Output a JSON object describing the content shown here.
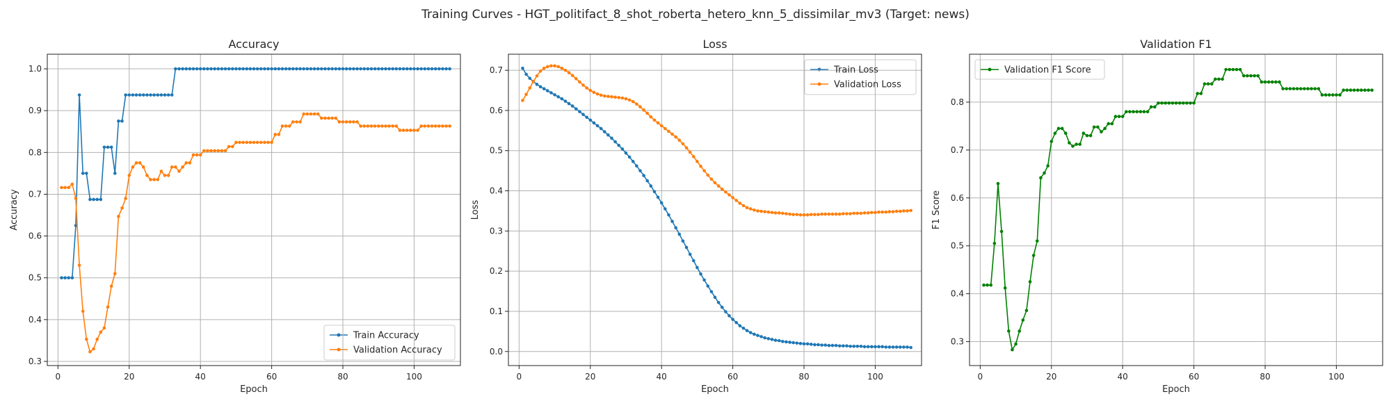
{
  "figure": {
    "suptitle": "Training Curves - HGT_politifact_8_shot_roberta_hetero_knn_5_dissimilar_mv3 (Target: news)"
  },
  "chart_data": [
    {
      "type": "line",
      "title": "Accuracy",
      "xlabel": "Epoch",
      "ylabel": "Accuracy",
      "xlim": [
        -3,
        113
      ],
      "ylim": [
        0.29,
        1.035
      ],
      "xticks": [
        0,
        20,
        40,
        60,
        80,
        100
      ],
      "yticks": [
        0.3,
        0.4,
        0.5,
        0.6,
        0.7,
        0.8,
        0.9,
        1.0
      ],
      "ytick_labels": [
        "0.3",
        "0.4",
        "0.5",
        "0.6",
        "0.7",
        "0.8",
        "0.9",
        "1.0"
      ],
      "grid": true,
      "legend": "lower-right",
      "series": [
        {
          "name": "Train Accuracy",
          "color": "#1f77b4",
          "x_start": 1,
          "values": [
            0.5,
            0.5,
            0.5,
            0.5,
            0.625,
            0.9375,
            0.75,
            0.75,
            0.6875,
            0.6875,
            0.6875,
            0.6875,
            0.8125,
            0.8125,
            0.8125,
            0.75,
            0.875,
            0.875,
            0.9375,
            0.9375,
            0.9375,
            0.9375,
            0.9375,
            0.9375,
            0.9375,
            0.9375,
            0.9375,
            0.9375,
            0.9375,
            0.9375,
            0.9375,
            0.9375,
            1,
            1,
            1,
            1,
            1,
            1,
            1,
            1,
            1,
            1,
            1,
            1,
            1,
            1,
            1,
            1,
            1,
            1,
            1,
            1,
            1,
            1,
            1,
            1,
            1,
            1,
            1,
            1,
            1,
            1,
            1,
            1,
            1,
            1,
            1,
            1,
            1,
            1,
            1,
            1,
            1,
            1,
            1,
            1,
            1,
            1,
            1,
            1,
            1,
            1,
            1,
            1,
            1,
            1,
            1,
            1,
            1,
            1,
            1,
            1,
            1,
            1,
            1,
            1,
            1,
            1,
            1,
            1,
            1,
            1,
            1,
            1,
            1,
            1,
            1,
            1,
            1,
            1
          ]
        },
        {
          "name": "Validation Accuracy",
          "color": "#ff7f0e",
          "x_start": 1,
          "values": [
            0.716,
            0.716,
            0.716,
            0.724,
            0.69,
            0.53,
            0.42,
            0.353,
            0.323,
            0.33,
            0.353,
            0.37,
            0.38,
            0.43,
            0.48,
            0.51,
            0.647,
            0.667,
            0.69,
            0.745,
            0.765,
            0.775,
            0.775,
            0.765,
            0.745,
            0.735,
            0.735,
            0.735,
            0.755,
            0.745,
            0.745,
            0.765,
            0.765,
            0.755,
            0.765,
            0.775,
            0.775,
            0.794,
            0.794,
            0.794,
            0.804,
            0.804,
            0.804,
            0.804,
            0.804,
            0.804,
            0.804,
            0.814,
            0.814,
            0.824,
            0.824,
            0.824,
            0.824,
            0.824,
            0.824,
            0.824,
            0.824,
            0.824,
            0.824,
            0.824,
            0.843,
            0.843,
            0.863,
            0.863,
            0.863,
            0.873,
            0.873,
            0.873,
            0.892,
            0.892,
            0.892,
            0.892,
            0.892,
            0.882,
            0.882,
            0.882,
            0.882,
            0.882,
            0.873,
            0.873,
            0.873,
            0.873,
            0.873,
            0.873,
            0.863,
            0.863,
            0.863,
            0.863,
            0.863,
            0.863,
            0.863,
            0.863,
            0.863,
            0.863,
            0.863,
            0.853,
            0.853,
            0.853,
            0.853,
            0.853,
            0.853,
            0.863,
            0.863,
            0.863,
            0.863,
            0.863,
            0.863,
            0.863,
            0.863,
            0.863
          ]
        }
      ]
    },
    {
      "type": "line",
      "title": "Loss",
      "xlabel": "Epoch",
      "ylabel": "Loss",
      "xlim": [
        -3,
        113
      ],
      "ylim": [
        -0.035,
        0.74
      ],
      "xticks": [
        0,
        20,
        40,
        60,
        80,
        100
      ],
      "yticks": [
        0.0,
        0.1,
        0.2,
        0.3,
        0.4,
        0.5,
        0.6,
        0.7
      ],
      "ytick_labels": [
        "0.0",
        "0.1",
        "0.2",
        "0.3",
        "0.4",
        "0.5",
        "0.6",
        "0.7"
      ],
      "grid": true,
      "legend": "upper-right",
      "series": [
        {
          "name": "Train Loss",
          "color": "#1f77b4",
          "x_start": 1,
          "values": [
            0.705,
            0.69,
            0.68,
            0.672,
            0.665,
            0.659,
            0.654,
            0.649,
            0.644,
            0.639,
            0.634,
            0.629,
            0.623,
            0.617,
            0.611,
            0.604,
            0.597,
            0.59,
            0.583,
            0.576,
            0.569,
            0.562,
            0.555,
            0.547,
            0.539,
            0.531,
            0.522,
            0.513,
            0.504,
            0.494,
            0.484,
            0.473,
            0.462,
            0.45,
            0.438,
            0.425,
            0.412,
            0.398,
            0.384,
            0.37,
            0.355,
            0.34,
            0.324,
            0.308,
            0.292,
            0.275,
            0.259,
            0.242,
            0.226,
            0.209,
            0.193,
            0.178,
            0.163,
            0.149,
            0.135,
            0.122,
            0.11,
            0.099,
            0.089,
            0.08,
            0.072,
            0.064,
            0.058,
            0.052,
            0.047,
            0.043,
            0.04,
            0.037,
            0.034,
            0.032,
            0.03,
            0.028,
            0.027,
            0.025,
            0.024,
            0.023,
            0.022,
            0.021,
            0.02,
            0.019,
            0.019,
            0.018,
            0.017,
            0.017,
            0.016,
            0.016,
            0.015,
            0.015,
            0.015,
            0.014,
            0.014,
            0.014,
            0.013,
            0.013,
            0.013,
            0.013,
            0.012,
            0.012,
            0.012,
            0.012,
            0.012,
            0.012,
            0.011,
            0.011,
            0.011,
            0.011,
            0.011,
            0.011,
            0.011,
            0.01
          ]
        },
        {
          "name": "Validation Loss",
          "color": "#ff7f0e",
          "x_start": 1,
          "values": [
            0.625,
            0.64,
            0.656,
            0.672,
            0.686,
            0.698,
            0.705,
            0.709,
            0.711,
            0.711,
            0.709,
            0.705,
            0.7,
            0.694,
            0.687,
            0.679,
            0.671,
            0.663,
            0.656,
            0.65,
            0.645,
            0.641,
            0.638,
            0.636,
            0.635,
            0.634,
            0.633,
            0.632,
            0.631,
            0.629,
            0.626,
            0.622,
            0.616,
            0.609,
            0.601,
            0.593,
            0.584,
            0.576,
            0.569,
            0.562,
            0.555,
            0.548,
            0.541,
            0.534,
            0.526,
            0.517,
            0.507,
            0.496,
            0.485,
            0.473,
            0.461,
            0.45,
            0.439,
            0.429,
            0.42,
            0.412,
            0.404,
            0.397,
            0.39,
            0.383,
            0.376,
            0.369,
            0.363,
            0.358,
            0.355,
            0.352,
            0.35,
            0.349,
            0.348,
            0.347,
            0.346,
            0.345,
            0.345,
            0.344,
            0.343,
            0.342,
            0.341,
            0.341,
            0.34,
            0.34,
            0.34,
            0.341,
            0.341,
            0.341,
            0.342,
            0.342,
            0.342,
            0.342,
            0.342,
            0.342,
            0.343,
            0.343,
            0.343,
            0.344,
            0.344,
            0.344,
            0.345,
            0.345,
            0.346,
            0.346,
            0.347,
            0.347,
            0.347,
            0.348,
            0.348,
            0.349,
            0.349,
            0.35,
            0.35,
            0.351
          ]
        }
      ]
    },
    {
      "type": "line",
      "title": "Validation F1",
      "xlabel": "Epoch",
      "ylabel": "F1 Score",
      "xlim": [
        -3,
        113
      ],
      "ylim": [
        0.25,
        0.9
      ],
      "xticks": [
        0,
        20,
        40,
        60,
        80,
        100
      ],
      "yticks": [
        0.3,
        0.4,
        0.5,
        0.6,
        0.7,
        0.8
      ],
      "ytick_labels": [
        "0.3",
        "0.4",
        "0.5",
        "0.6",
        "0.7",
        "0.8"
      ],
      "grid": true,
      "legend": "upper-left",
      "series": [
        {
          "name": "Validation F1 Score",
          "color": "#008000",
          "x_start": 1,
          "values": [
            0.418,
            0.418,
            0.418,
            0.505,
            0.63,
            0.53,
            0.412,
            0.322,
            0.283,
            0.295,
            0.322,
            0.345,
            0.365,
            0.425,
            0.48,
            0.51,
            0.642,
            0.652,
            0.667,
            0.718,
            0.735,
            0.745,
            0.745,
            0.735,
            0.715,
            0.708,
            0.712,
            0.712,
            0.735,
            0.73,
            0.73,
            0.748,
            0.748,
            0.738,
            0.745,
            0.755,
            0.755,
            0.77,
            0.77,
            0.77,
            0.78,
            0.78,
            0.78,
            0.78,
            0.78,
            0.78,
            0.78,
            0.79,
            0.79,
            0.798,
            0.798,
            0.798,
            0.798,
            0.798,
            0.798,
            0.798,
            0.798,
            0.798,
            0.798,
            0.798,
            0.818,
            0.818,
            0.838,
            0.838,
            0.838,
            0.848,
            0.848,
            0.848,
            0.868,
            0.868,
            0.868,
            0.868,
            0.868,
            0.855,
            0.855,
            0.855,
            0.855,
            0.855,
            0.842,
            0.842,
            0.842,
            0.842,
            0.842,
            0.842,
            0.828,
            0.828,
            0.828,
            0.828,
            0.828,
            0.828,
            0.828,
            0.828,
            0.828,
            0.828,
            0.828,
            0.815,
            0.815,
            0.815,
            0.815,
            0.815,
            0.815,
            0.825,
            0.825,
            0.825,
            0.825,
            0.825,
            0.825,
            0.825,
            0.825,
            0.825
          ]
        }
      ]
    }
  ]
}
